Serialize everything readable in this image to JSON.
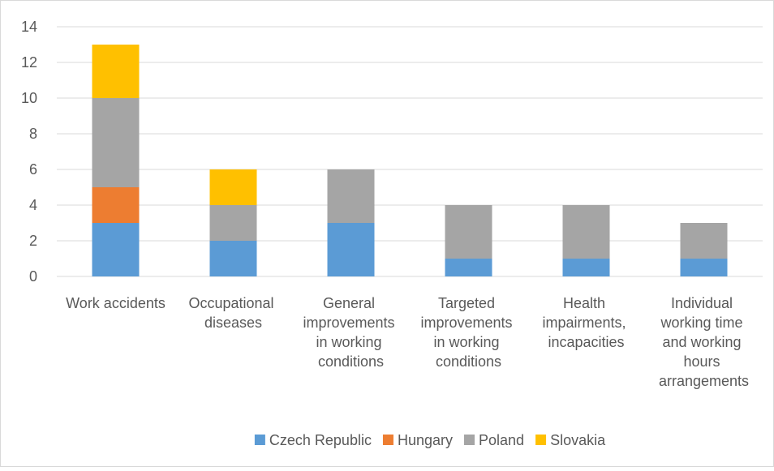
{
  "chart_data": {
    "type": "stacked_bar",
    "categories": [
      "Work accidents",
      "Occupational diseases",
      "General improvements in working conditions",
      "Targeted improvements in working conditions",
      "Health impairments, incapacities",
      "Individual working time and working hours arrangements"
    ],
    "series": [
      {
        "name": "Czech Republic",
        "color": "#5b9bd5",
        "values": [
          3,
          2,
          3,
          1,
          1,
          1
        ]
      },
      {
        "name": "Hungary",
        "color": "#ed7d31",
        "values": [
          2,
          0,
          0,
          0,
          0,
          0
        ]
      },
      {
        "name": "Poland",
        "color": "#a5a5a5",
        "values": [
          5,
          2,
          3,
          3,
          3,
          2
        ]
      },
      {
        "name": "Slovakia",
        "color": "#ffc000",
        "values": [
          3,
          2,
          0,
          0,
          0,
          0
        ]
      }
    ],
    "ylim": [
      0,
      14
    ],
    "yticks": [
      0,
      2,
      4,
      6,
      8,
      10,
      12,
      14
    ],
    "grid": true,
    "legend": "bottom"
  }
}
